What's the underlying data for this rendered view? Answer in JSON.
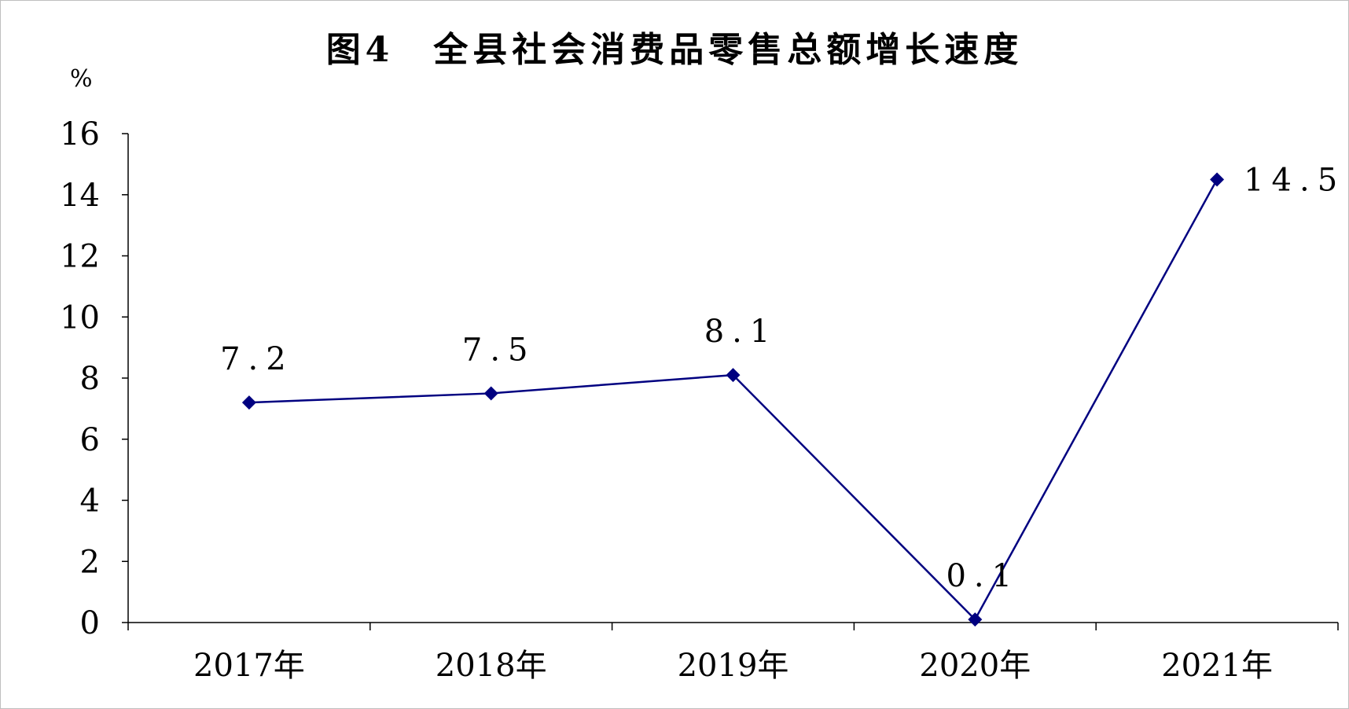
{
  "chart_data": {
    "type": "line",
    "title": "图4　全县社会消费品零售总额增长速度",
    "unit": "%",
    "categories": [
      "2017年",
      "2018年",
      "2019年",
      "2020年",
      "2021年"
    ],
    "series": [
      {
        "values": [
          7.2,
          7.5,
          8.1,
          0.1,
          14.5
        ]
      }
    ],
    "data_labels": [
      "7.2",
      "7.5",
      "8.1",
      "0.1",
      "14.5"
    ],
    "ylim": [
      0,
      16
    ],
    "yticks": [
      "0",
      "2",
      "4",
      "6",
      "8",
      "10",
      "12",
      "14",
      "16"
    ],
    "grid": false,
    "legend": "none",
    "colors": {
      "line": "#000080",
      "marker": "#000080",
      "axis": "#000000"
    }
  }
}
